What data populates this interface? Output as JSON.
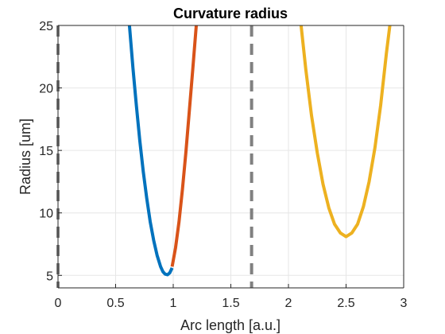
{
  "chart_data": {
    "type": "line",
    "title": "Curvature radius",
    "xlabel": "Arc length [a.u.]",
    "ylabel": "Radius [um]",
    "xlim": [
      0,
      3
    ],
    "ylim": [
      4,
      25
    ],
    "xticks": [
      0,
      0.5,
      1,
      1.5,
      2,
      2.5,
      3
    ],
    "xtick_labels": [
      "0",
      "0.5",
      "1",
      "1.5",
      "2",
      "2.5",
      "3"
    ],
    "yticks": [
      5,
      10,
      15,
      20,
      25
    ],
    "ytick_labels": [
      "5",
      "10",
      "15",
      "20",
      "25"
    ],
    "grid": true,
    "series": [
      {
        "color": "#0072BD",
        "x": [
          0.62,
          0.65,
          0.68,
          0.71,
          0.74,
          0.77,
          0.8,
          0.83,
          0.86,
          0.89,
          0.91,
          0.93,
          0.95,
          0.97,
          0.99
        ],
        "y": [
          25,
          21.6,
          18.6,
          15.8,
          13.3,
          11.2,
          9.3,
          7.8,
          6.6,
          5.7,
          5.3,
          5.1,
          5.05,
          5.2,
          5.6
        ]
      },
      {
        "color": "#D95319",
        "x": [
          0.99,
          1.02,
          1.05,
          1.08,
          1.11,
          1.14,
          1.17,
          1.2
        ],
        "y": [
          5.7,
          7.2,
          9.3,
          11.9,
          14.9,
          18.2,
          21.5,
          25
        ]
      },
      {
        "color": "#EDB120",
        "x": [
          2.11,
          2.15,
          2.2,
          2.25,
          2.3,
          2.35,
          2.4,
          2.45,
          2.5,
          2.55,
          2.6,
          2.65,
          2.7,
          2.75,
          2.8,
          2.85,
          2.88
        ],
        "y": [
          25,
          21.5,
          17.8,
          14.8,
          12.3,
          10.4,
          9.1,
          8.4,
          8.1,
          8.4,
          9.1,
          10.5,
          12.5,
          15.2,
          18.6,
          22.8,
          25
        ]
      }
    ],
    "vertical_lines": [
      {
        "x": 0,
        "color": "#808080",
        "style": "dashed"
      },
      {
        "x": 1.68,
        "color": "#808080",
        "style": "dashed"
      }
    ]
  }
}
